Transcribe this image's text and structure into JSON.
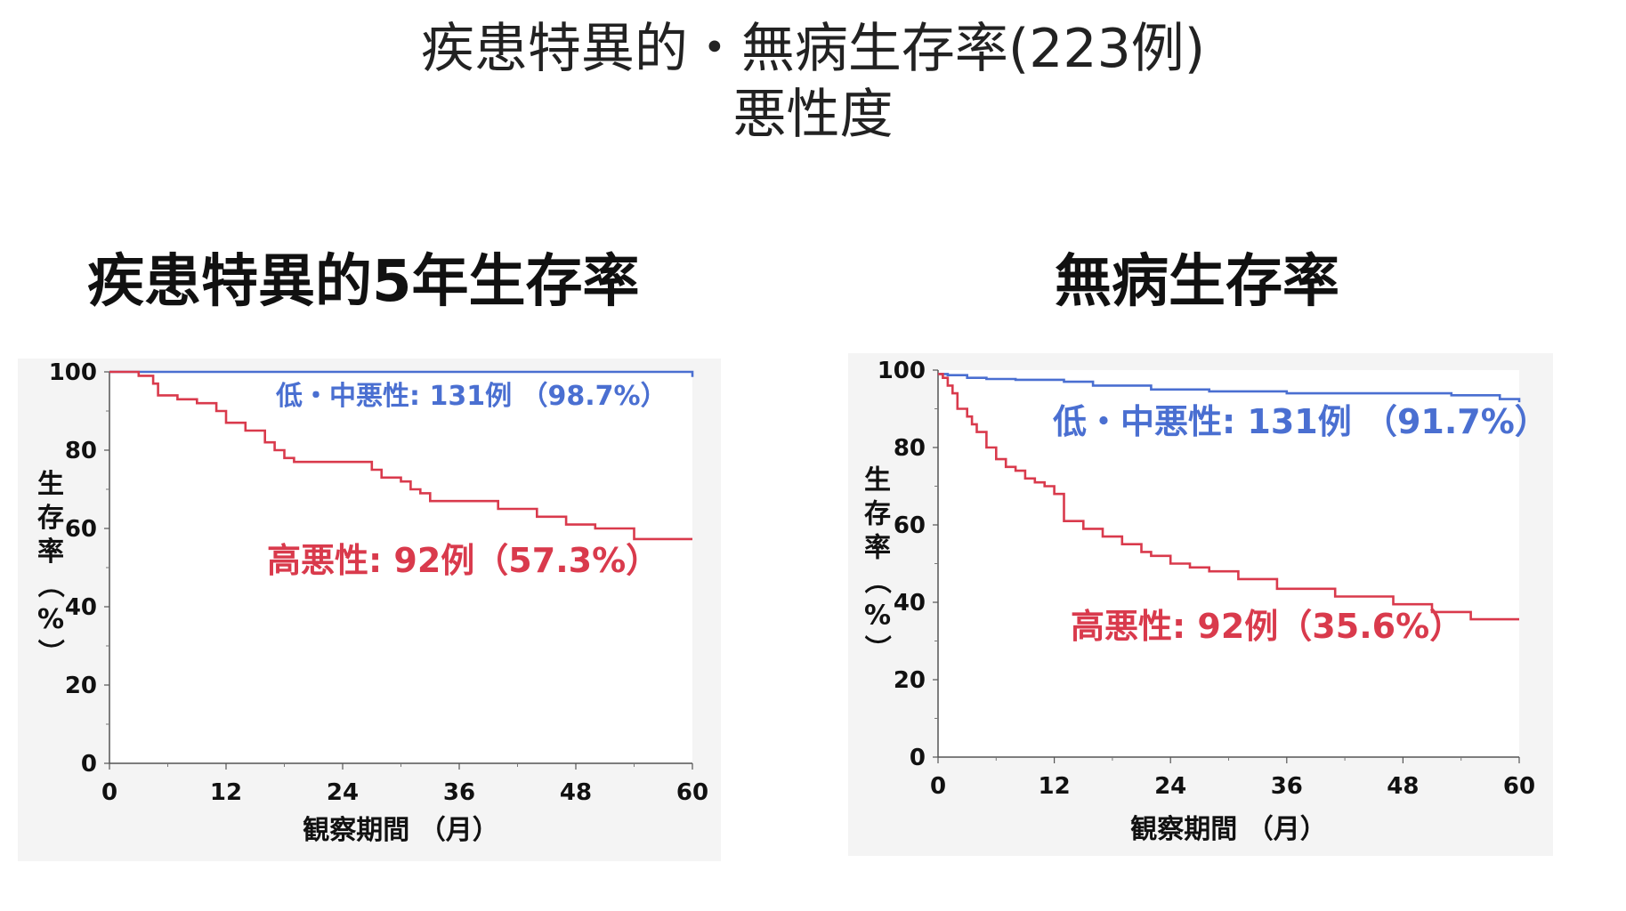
{
  "title": {
    "line1": "疾患特異的・無病生存率(223例)",
    "line2": "悪性度"
  },
  "panels": [
    {
      "heading": "疾患特異的5年生存率"
    },
    {
      "heading": "無病生存率"
    }
  ],
  "colors": {
    "low": "#4a6fd1",
    "high": "#d93a4c"
  },
  "chart_data": [
    {
      "type": "line",
      "title": "疾患特異的5年生存率",
      "xlabel": "観察期間 （月）",
      "ylabel": "生存率（%）",
      "xlim": [
        0,
        60
      ],
      "ylim": [
        0,
        100
      ],
      "xticks": [
        "0",
        "12",
        "24",
        "36",
        "48",
        "60"
      ],
      "yticks": [
        "0",
        "20",
        "40",
        "60",
        "80",
        "100"
      ],
      "series": [
        {
          "name": "低・中悪性: 131例 （98.7%）",
          "color": "#4a6fd1",
          "step": true,
          "x": [
            0,
            60
          ],
          "y": [
            100,
            98.7
          ]
        },
        {
          "name": "高悪性: 92例（57.3%）",
          "color": "#d93a4c",
          "step": true,
          "x": [
            0,
            3,
            4.5,
            5,
            7,
            9,
            11,
            12,
            14,
            16,
            17,
            18,
            19,
            27,
            28,
            30,
            31,
            32,
            33,
            40,
            44,
            47,
            50,
            54,
            60
          ],
          "y": [
            100,
            99,
            97,
            94,
            93,
            92,
            90,
            87,
            85,
            82,
            80,
            78,
            77,
            75,
            73,
            72,
            70,
            69,
            67,
            65,
            63,
            61,
            60,
            57.3,
            57.3
          ]
        }
      ]
    },
    {
      "type": "line",
      "title": "無病生存率",
      "xlabel": "観察期間 （月）",
      "ylabel": "生存率（%）",
      "xlim": [
        0,
        60
      ],
      "ylim": [
        0,
        100
      ],
      "xticks": [
        "0",
        "12",
        "24",
        "36",
        "48",
        "60"
      ],
      "yticks": [
        "0",
        "20",
        "40",
        "60",
        "80",
        "100"
      ],
      "series": [
        {
          "name": "低・中悪性: 131例 （91.7%）",
          "color": "#4a6fd1",
          "step": true,
          "x": [
            0,
            1,
            3,
            5,
            8,
            13,
            16,
            22,
            28,
            36,
            45,
            53,
            58,
            60
          ],
          "y": [
            99,
            98.7,
            98,
            97.7,
            97.5,
            97,
            96,
            95,
            94.5,
            94,
            94,
            93.5,
            92.5,
            91.7
          ]
        },
        {
          "name": "高悪性: 92例（35.6%）",
          "color": "#d93a4c",
          "step": true,
          "x": [
            0,
            0.5,
            1,
            1.5,
            2,
            3,
            3.5,
            4,
            5,
            6,
            7,
            8,
            9,
            10,
            11,
            12,
            13,
            15,
            17,
            19,
            21,
            22,
            24,
            26,
            28,
            31,
            35,
            41,
            47,
            51,
            55,
            60
          ],
          "y": [
            99,
            98,
            96,
            94,
            90,
            88,
            86,
            84,
            80,
            77,
            75,
            74,
            72,
            71,
            70,
            68,
            61,
            59,
            57,
            55,
            53,
            52,
            50,
            49,
            48,
            46,
            43.5,
            41.5,
            39.5,
            37.5,
            35.6,
            35.6
          ]
        }
      ]
    }
  ]
}
